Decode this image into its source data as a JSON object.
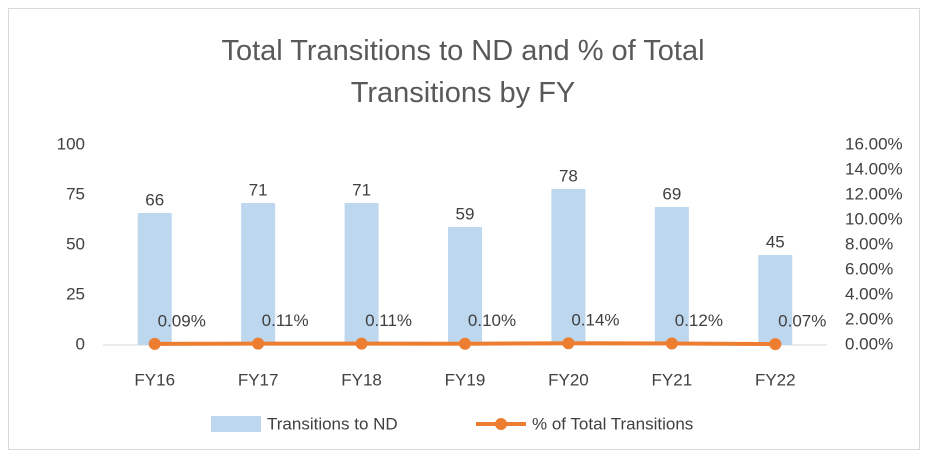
{
  "chart_data": {
    "type": "bar",
    "title": "Total Transitions to ND and % of Total Transitions by FY",
    "categories": [
      "FY16",
      "FY17",
      "FY18",
      "FY19",
      "FY20",
      "FY21",
      "FY22"
    ],
    "series": [
      {
        "name": "Transitions to ND",
        "type": "bar",
        "color": "#bdd7ee",
        "values": [
          66,
          71,
          71,
          59,
          78,
          69,
          45
        ]
      },
      {
        "name": "% of Total Transitions",
        "type": "line",
        "axis": "y2",
        "color": "#ed7d31",
        "values": [
          0.09,
          0.11,
          0.11,
          0.1,
          0.14,
          0.12,
          0.07
        ],
        "value_labels": [
          "0.09%",
          "0.11%",
          "0.11%",
          "0.10%",
          "0.14%",
          "0.12%",
          "0.07%"
        ]
      }
    ],
    "ylim": [
      0,
      100
    ],
    "yticks": [
      0,
      25,
      50,
      75,
      100
    ],
    "y2lim": [
      0,
      16
    ],
    "y2ticks": [
      {
        "value": 0,
        "label": "0.00%"
      },
      {
        "value": 2,
        "label": "2.00%"
      },
      {
        "value": 4,
        "label": "4.00%"
      },
      {
        "value": 6,
        "label": "6.00%"
      },
      {
        "value": 8,
        "label": "8.00%"
      },
      {
        "value": 10,
        "label": "10.00%"
      },
      {
        "value": 12,
        "label": "12.00%"
      },
      {
        "value": 14,
        "label": "14.00%"
      },
      {
        "value": 16,
        "label": "16.00%"
      }
    ],
    "legend": "bottom"
  }
}
